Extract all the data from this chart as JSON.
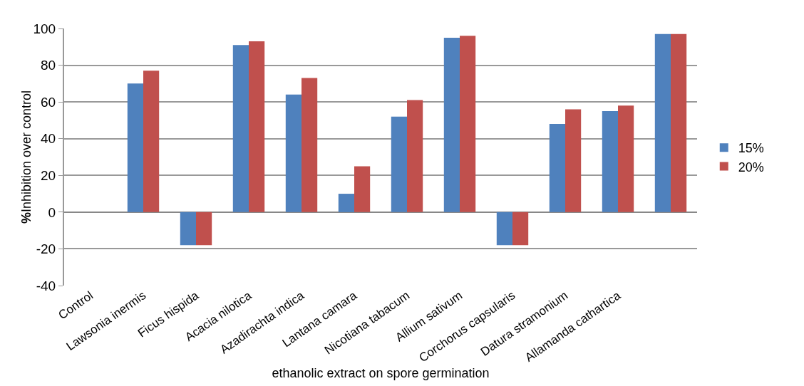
{
  "chart_data": {
    "type": "bar",
    "xlabel": "ethanolic extract on spore germination",
    "ylabel": "%Inhibition over control",
    "categories": [
      "Control",
      "Lawsonia inermis",
      "Ficus hispida",
      "Acacia nilotica",
      "Azadirachta indica",
      "Lantana camara",
      "Nicotiana tabacum",
      "Allium sativum",
      "Corchorus capsularis",
      "Datura stramonium",
      "Allamanda cathartica",
      null
    ],
    "series": [
      {
        "name": "15%",
        "color": "#4f81bd",
        "values": [
          0,
          70,
          -18,
          91,
          64,
          10,
          52,
          95,
          -18,
          48,
          55,
          97
        ]
      },
      {
        "name": "20%",
        "color": "#c0504d",
        "values": [
          0,
          77,
          -18,
          93,
          73,
          25,
          61,
          96,
          -18,
          56,
          58,
          97
        ]
      }
    ],
    "ylim": [
      -40,
      100
    ],
    "yticks": [
      -40,
      -20,
      0,
      20,
      40,
      60,
      80,
      100
    ],
    "grid": "y",
    "legend": "right"
  }
}
